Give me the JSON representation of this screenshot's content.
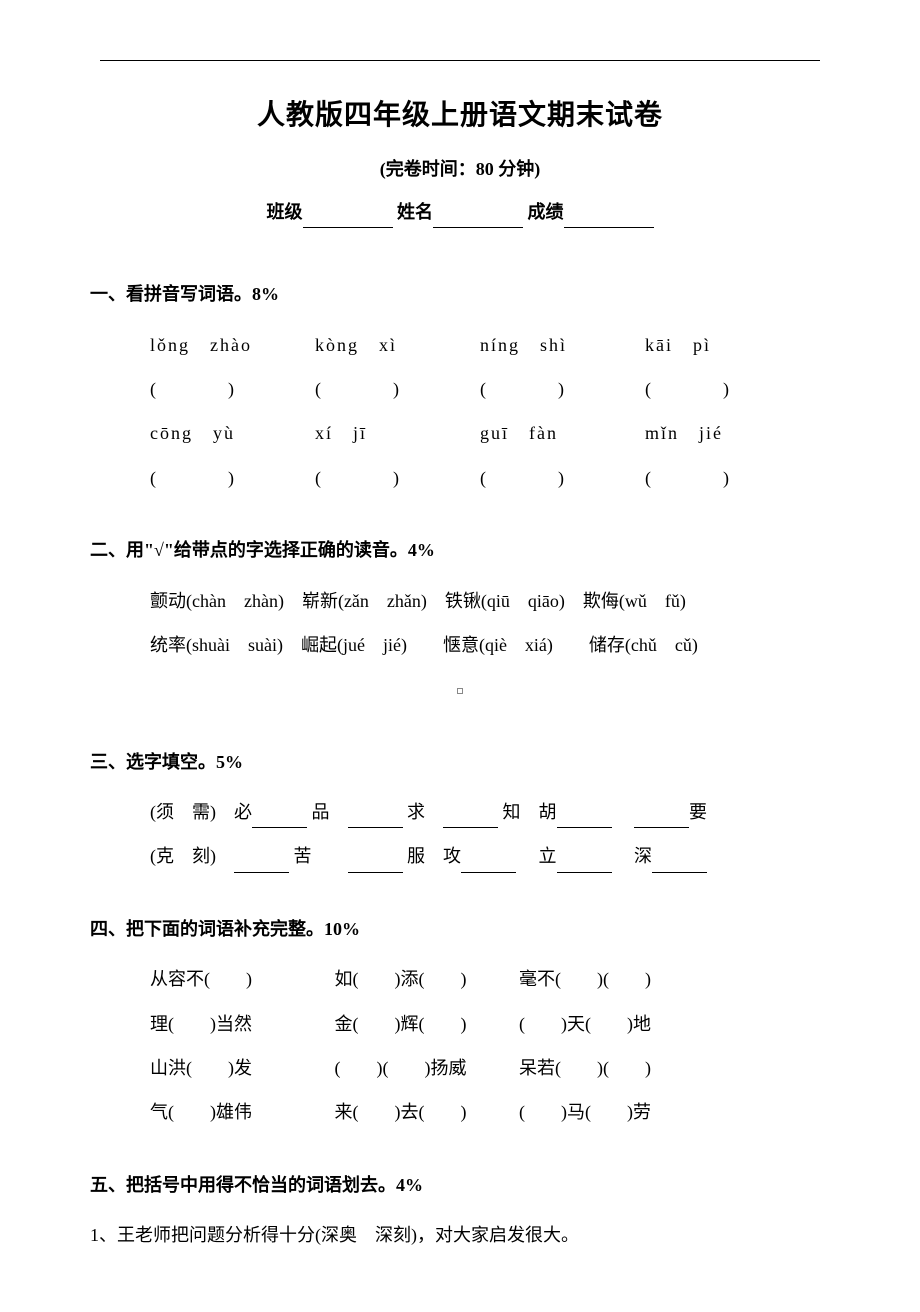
{
  "header": {
    "title": "人教版四年级上册语文期末试卷",
    "subtitle": "(完卷时间：80 分钟)",
    "class_label": "班级",
    "name_label": "姓名",
    "score_label": "成绩"
  },
  "sections": {
    "s1": {
      "title": "一、看拼音写词语。8%",
      "row1": [
        "lǒng　zhào",
        "kòng　xì",
        "níng　shì",
        "kāi　pì"
      ],
      "row2": [
        "cōng　yù",
        "xí　jī",
        "guī　fàn",
        "mǐn　jié"
      ],
      "paren": "(　　　　)"
    },
    "s2": {
      "title": "二、用\"√\"给带点的字选择正确的读音。4%",
      "line1": "颤动(chàn　zhàn)　崭新(zǎn　zhǎn)　铁锹(qiū　qiāo)　欺侮(wǔ　fǔ)",
      "line2": "统率(shuài　suài)　崛起(jué　jié)　　惬意(qiè　xiá)　　储存(chǔ　cǔ)"
    },
    "s3": {
      "title": "三、选字填空。5%",
      "line1_prefix": "(须　需)　必",
      "line1_items": [
        "品",
        "求",
        "知　胡",
        "",
        "要"
      ],
      "line2_prefix": "(克　刻)　",
      "line2_items": [
        "苦",
        "服　攻",
        "立",
        "深",
        ""
      ]
    },
    "s4": {
      "title": "四、把下面的词语补充完整。10%",
      "rows": [
        [
          "从容不(　　)",
          "如(　　)添(　　)",
          "毫不(　　)(　　)"
        ],
        [
          "理(　　)当然",
          "金(　　)辉(　　)",
          "(　　)天(　　)地"
        ],
        [
          "山洪(　　)发",
          "(　　)(　　)扬威",
          "呆若(　　)(　　)"
        ],
        [
          "气(　　)雄伟",
          "来(　　)去(　　)",
          "(　　)马(　　)劳"
        ]
      ]
    },
    "s5": {
      "title": "五、把括号中用得不恰当的词语划去。4%",
      "q1": "1、王老师把问题分析得十分(深奥　深刻)，对大家启发很大。"
    }
  }
}
